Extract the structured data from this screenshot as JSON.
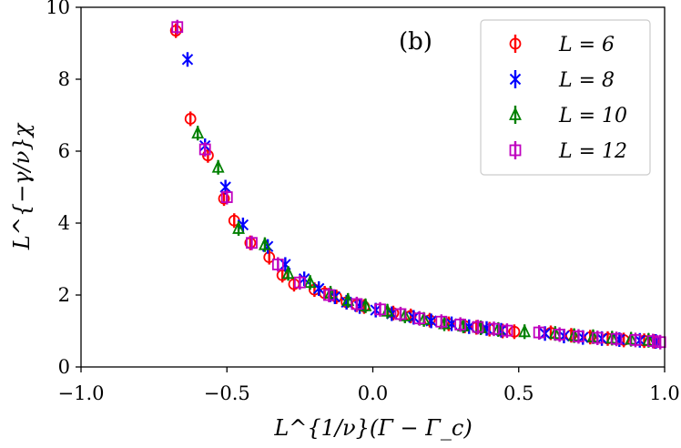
{
  "chart_data": {
    "type": "scatter",
    "panel_label": "(b)",
    "xlabel": "L^{1/ν}(Γ − Γ_c)",
    "ylabel": "L^{−γ/ν}χ",
    "xlim": [
      -1.0,
      1.0
    ],
    "ylim": [
      0,
      10
    ],
    "xticks": [
      -1.0,
      -0.5,
      0.0,
      0.5,
      1.0
    ],
    "xtick_labels": [
      "−1.0",
      "−0.5",
      "0.0",
      "0.5",
      "1.0"
    ],
    "yticks": [
      0,
      2,
      4,
      6,
      8,
      10
    ],
    "ytick_labels": [
      "0",
      "2",
      "4",
      "6",
      "8",
      "10"
    ],
    "legend_position": "top-right",
    "series": [
      {
        "name": "L = 6",
        "color": "#ff0000",
        "marker": "circle",
        "x": [
          -0.675,
          -0.625,
          -0.565,
          -0.51,
          -0.475,
          -0.42,
          -0.355,
          -0.31,
          -0.27,
          -0.2,
          -0.165,
          -0.125,
          -0.09,
          -0.055,
          -0.03,
          0.07,
          0.13,
          0.195,
          0.26,
          0.315,
          0.355,
          0.4,
          0.445,
          0.485,
          0.61,
          0.68,
          0.745,
          0.805,
          0.86,
          0.93,
          0.965
        ],
        "y": [
          9.35,
          6.9,
          5.88,
          4.68,
          4.07,
          3.45,
          3.05,
          2.55,
          2.3,
          2.15,
          2.05,
          1.95,
          1.8,
          1.73,
          1.68,
          1.5,
          1.42,
          1.3,
          1.2,
          1.14,
          1.1,
          1.05,
          1.0,
          0.98,
          0.95,
          0.88,
          0.83,
          0.79,
          0.75,
          0.73,
          0.71
        ]
      },
      {
        "name": "L = 8",
        "color": "#0000ff",
        "marker": "x",
        "x": [
          -0.635,
          -0.575,
          -0.505,
          -0.445,
          -0.36,
          -0.3,
          -0.235,
          -0.185,
          -0.13,
          -0.09,
          -0.045,
          0.01,
          0.065,
          0.14,
          0.2,
          0.27,
          0.33,
          0.39,
          0.44,
          0.59,
          0.655,
          0.72,
          0.785,
          0.845,
          0.915,
          0.97
        ],
        "y": [
          8.55,
          6.15,
          5.0,
          3.95,
          3.35,
          2.85,
          2.45,
          2.18,
          1.95,
          1.8,
          1.68,
          1.58,
          1.48,
          1.38,
          1.28,
          1.2,
          1.12,
          1.07,
          1.02,
          0.93,
          0.86,
          0.82,
          0.79,
          0.76,
          0.74,
          0.71
        ]
      },
      {
        "name": "L = 10",
        "color": "#008000",
        "marker": "triangle",
        "x": [
          -0.6,
          -0.53,
          -0.46,
          -0.37,
          -0.29,
          -0.215,
          -0.145,
          -0.085,
          -0.025,
          0.05,
          0.11,
          0.175,
          0.245,
          0.31,
          0.37,
          0.43,
          0.52,
          0.625,
          0.69,
          0.755,
          0.82,
          0.885,
          0.945
        ],
        "y": [
          6.5,
          5.55,
          3.85,
          3.4,
          2.6,
          2.35,
          2.05,
          1.85,
          1.7,
          1.55,
          1.42,
          1.32,
          1.2,
          1.14,
          1.09,
          1.04,
          0.98,
          0.93,
          0.87,
          0.84,
          0.8,
          0.77,
          0.74
        ]
      },
      {
        "name": "L = 12",
        "color": "#bf00bf",
        "marker": "square",
        "x": [
          -0.67,
          -0.575,
          -0.5,
          -0.415,
          -0.325,
          -0.25,
          -0.15,
          -0.055,
          0.025,
          0.095,
          0.16,
          0.235,
          0.3,
          0.36,
          0.415,
          0.46,
          0.57,
          0.64,
          0.705,
          0.77,
          0.835,
          0.9,
          0.96,
          0.985
        ],
        "y": [
          9.45,
          6.05,
          4.72,
          3.45,
          2.85,
          2.35,
          2.0,
          1.75,
          1.6,
          1.47,
          1.35,
          1.26,
          1.18,
          1.11,
          1.06,
          1.01,
          0.96,
          0.9,
          0.85,
          0.81,
          0.78,
          0.75,
          0.72,
          0.69
        ]
      }
    ]
  }
}
